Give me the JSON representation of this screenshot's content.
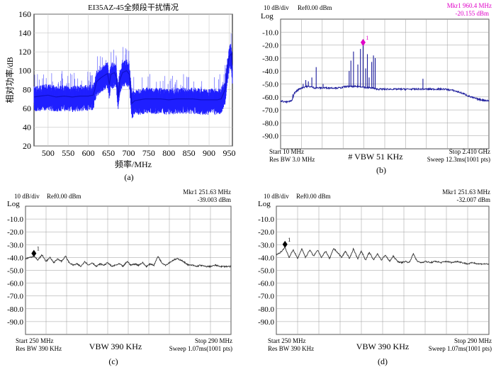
{
  "chart_data": [
    {
      "id": "a",
      "type": "line",
      "title": "EI35AZ-45全频段干扰情况",
      "xlabel": "频率/MHz",
      "ylabel": "相对功率/dB",
      "caption": "(a)",
      "xlim": [
        465,
        958
      ],
      "ylim": [
        20,
        160
      ],
      "xticks": [
        "500",
        "550",
        "600",
        "650",
        "700",
        "750",
        "800",
        "850",
        "900",
        "950"
      ],
      "yticks": [
        "20",
        "40",
        "60",
        "80",
        "100",
        "120",
        "140",
        "160"
      ],
      "grid": true,
      "series": [
        {
          "color": "#1f1fff",
          "points": [
            [
              465,
              72
            ],
            [
              480,
              73
            ],
            [
              500,
              74
            ],
            [
              520,
              72
            ],
            [
              540,
              73
            ],
            [
              560,
              72
            ],
            [
              580,
              73
            ],
            [
              600,
              73
            ],
            [
              612,
              74
            ],
            [
              616,
              80
            ],
            [
              620,
              88
            ],
            [
              630,
              92
            ],
            [
              640,
              95
            ],
            [
              648,
              97
            ],
            [
              652,
              85
            ],
            [
              656,
              96
            ],
            [
              665,
              98
            ],
            [
              670,
              93
            ],
            [
              674,
              72
            ],
            [
              678,
              90
            ],
            [
              685,
              98
            ],
            [
              695,
              100
            ],
            [
              702,
              96
            ],
            [
              705,
              80
            ],
            [
              708,
              65
            ],
            [
              715,
              68
            ],
            [
              740,
              70
            ],
            [
              760,
              70
            ],
            [
              780,
              70
            ],
            [
              800,
              69
            ],
            [
              820,
              70
            ],
            [
              840,
              70
            ],
            [
              860,
              70
            ],
            [
              880,
              69
            ],
            [
              900,
              69
            ],
            [
              920,
              69
            ],
            [
              930,
              70
            ],
            [
              940,
              80
            ],
            [
              945,
              100
            ],
            [
              950,
              115
            ],
            [
              955,
              118
            ],
            [
              958,
              100
            ]
          ]
        }
      ]
    },
    {
      "id": "b",
      "type": "line",
      "caption": "(b)",
      "header_left": "10 dB/div",
      "header_ref": "Ref0.00 dBm",
      "scale_label": "Log",
      "marker_text": "Mkr1 960.4 MHz",
      "marker_value": "-20.155 dBm",
      "bottom_left_1": "Start 10 MHz",
      "bottom_left_2": "Res BW 3.0 MHz",
      "bottom_center": "# VBW 51 KHz",
      "bottom_right_1": "Stop 2.410 GHz",
      "bottom_right_2": "Sweep 12.3ms(1001 pts)",
      "xlim": [
        10,
        2410
      ],
      "ylim": [
        -100,
        0
      ],
      "yticks": [
        "-10.0",
        "-20.0",
        "-30.0",
        "-40.0",
        "-50.0",
        "-60.0",
        "-70.0",
        "-80.0",
        "-90.0"
      ],
      "grid": true,
      "marker": {
        "label": "1",
        "x": 960.4,
        "y": -20.155
      },
      "series": [
        {
          "color": "#1c1c9c",
          "points": [
            [
              10,
              -63
            ],
            [
              80,
              -64
            ],
            [
              140,
              -63
            ],
            [
              170,
              -57
            ],
            [
              200,
              -55
            ],
            [
              250,
              -53
            ],
            [
              300,
              -52
            ],
            [
              350,
              -52
            ],
            [
              400,
              -53
            ],
            [
              480,
              -53
            ],
            [
              560,
              -53
            ],
            [
              640,
              -53
            ],
            [
              700,
              -53
            ],
            [
              760,
              -52
            ],
            [
              820,
              -52
            ],
            [
              880,
              -52
            ],
            [
              940,
              -52
            ],
            [
              1000,
              -53
            ],
            [
              1060,
              -53
            ],
            [
              1120,
              -54
            ],
            [
              1200,
              -54
            ],
            [
              1300,
              -54
            ],
            [
              1400,
              -54
            ],
            [
              1500,
              -54
            ],
            [
              1600,
              -54
            ],
            [
              1700,
              -54
            ],
            [
              1800,
              -54
            ],
            [
              1900,
              -54
            ],
            [
              2000,
              -55
            ],
            [
              2100,
              -57
            ],
            [
              2200,
              -60
            ],
            [
              2300,
              -62
            ],
            [
              2410,
              -63
            ]
          ]
        }
      ],
      "spikes": [
        [
          150,
          -58
        ],
        [
          200,
          -56
        ],
        [
          240,
          -54
        ],
        [
          270,
          -50
        ],
        [
          300,
          -47
        ],
        [
          330,
          -48
        ],
        [
          370,
          -45
        ],
        [
          420,
          -37
        ],
        [
          500,
          -50
        ],
        [
          800,
          -40
        ],
        [
          820,
          -32
        ],
        [
          850,
          -25
        ],
        [
          900,
          -35
        ],
        [
          930,
          -23
        ],
        [
          960,
          -20.155
        ],
        [
          990,
          -38
        ],
        [
          1010,
          -27
        ],
        [
          1030,
          -45
        ],
        [
          1060,
          -33
        ],
        [
          1080,
          -28
        ],
        [
          1100,
          -30
        ],
        [
          1650,
          -46
        ]
      ]
    },
    {
      "id": "c",
      "type": "line",
      "caption": "(c)",
      "header_left": "10 dB/div",
      "header_ref": "Ref0.00 dBm",
      "scale_label": "Log",
      "marker_text": "Mkr1 251.63 MHz",
      "marker_value": "-39.003 dBm",
      "bottom_left_1": "Start 250 MHz",
      "bottom_left_2": "Res BW 390 KHz",
      "bottom_center": "VBW 390 KHz",
      "bottom_right_1": "Stop 290 MHz",
      "bottom_right_2": "Sweep 1.07ms(1001 pts)",
      "xlim": [
        250,
        290
      ],
      "ylim": [
        -100,
        0
      ],
      "yticks": [
        "-10.0",
        "-20.0",
        "-30.0",
        "-40.0",
        "-50.0",
        "-60.0",
        "-70.0",
        "-80.0",
        "-90.0"
      ],
      "grid": true,
      "marker": {
        "label": "1",
        "x": 251.63,
        "y": -39.003
      },
      "series": [
        {
          "color": "#333333",
          "points": [
            [
              250,
              -41
            ],
            [
              250.8,
              -40
            ],
            [
              251.63,
              -39
            ],
            [
              252.4,
              -42
            ],
            [
              253.2,
              -38
            ],
            [
              254,
              -43
            ],
            [
              254.8,
              -40
            ],
            [
              255.5,
              -44
            ],
            [
              256.3,
              -41
            ],
            [
              257,
              -43
            ],
            [
              257.8,
              -39
            ],
            [
              258.5,
              -44
            ],
            [
              259.3,
              -46
            ],
            [
              260,
              -45
            ],
            [
              260.8,
              -47
            ],
            [
              261.5,
              -43
            ],
            [
              262.3,
              -46
            ],
            [
              263,
              -44
            ],
            [
              263.8,
              -47
            ],
            [
              264.5,
              -45
            ],
            [
              265.3,
              -46
            ],
            [
              266,
              -44
            ],
            [
              266.8,
              -47
            ],
            [
              267.5,
              -46
            ],
            [
              268.3,
              -45
            ],
            [
              269,
              -47
            ],
            [
              269.8,
              -43
            ],
            [
              270.5,
              -46
            ],
            [
              271.3,
              -45
            ],
            [
              272,
              -46
            ],
            [
              272.8,
              -44
            ],
            [
              273.5,
              -47
            ],
            [
              274.3,
              -45
            ],
            [
              275,
              -46
            ],
            [
              275.8,
              -39
            ],
            [
              276.5,
              -44
            ],
            [
              277.3,
              -46
            ],
            [
              278,
              -44
            ],
            [
              278.8,
              -42
            ],
            [
              279.5,
              -41
            ],
            [
              280.3,
              -42
            ],
            [
              281,
              -44
            ],
            [
              281.8,
              -46
            ],
            [
              282.5,
              -46
            ],
            [
              283.3,
              -47
            ],
            [
              284,
              -46
            ],
            [
              285,
              -47
            ],
            [
              286,
              -47
            ],
            [
              287,
              -46
            ],
            [
              288,
              -47
            ],
            [
              289,
              -47
            ],
            [
              290,
              -47
            ]
          ]
        }
      ]
    },
    {
      "id": "d",
      "type": "line",
      "caption": "(d)",
      "header_left": "10 dB/div",
      "header_ref": "Ref0.00 dBm",
      "scale_label": "Log",
      "marker_text": "Mkr1 251.63 MHz",
      "marker_value": "-32.007 dBm",
      "bottom_left_1": "Start 250 MHz",
      "bottom_left_2": "Res BW 390 KHz",
      "bottom_center": "VBW 390 KHz",
      "bottom_right_1": "Stop 290 MHz",
      "bottom_right_2": "Sweep 1.07ms(1001 pts)",
      "xlim": [
        250,
        290
      ],
      "ylim": [
        -100,
        0
      ],
      "yticks": [
        "-10.0",
        "-20.0",
        "-30.0",
        "-40.0",
        "-50.0",
        "-60.0",
        "-70.0",
        "-80.0",
        "-90.0"
      ],
      "grid": true,
      "marker": {
        "label": "1",
        "x": 251.63,
        "y": -32.007
      },
      "series": [
        {
          "color": "#333333",
          "points": [
            [
              250,
              -38
            ],
            [
              250.8,
              -36
            ],
            [
              251.63,
              -32
            ],
            [
              252.4,
              -40
            ],
            [
              253.2,
              -34
            ],
            [
              254,
              -41
            ],
            [
              254.8,
              -33
            ],
            [
              255.5,
              -40
            ],
            [
              256.3,
              -34
            ],
            [
              257,
              -39
            ],
            [
              257.8,
              -34
            ],
            [
              258.5,
              -40
            ],
            [
              259.3,
              -35
            ],
            [
              260,
              -41
            ],
            [
              260.8,
              -33
            ],
            [
              261.5,
              -36
            ],
            [
              262.3,
              -40
            ],
            [
              263,
              -35
            ],
            [
              263.8,
              -41
            ],
            [
              264.5,
              -33
            ],
            [
              265.3,
              -41
            ],
            [
              266,
              -35
            ],
            [
              266.8,
              -42
            ],
            [
              267.5,
              -36
            ],
            [
              268.3,
              -42
            ],
            [
              269,
              -37
            ],
            [
              269.8,
              -42
            ],
            [
              270.5,
              -38
            ],
            [
              271.3,
              -43
            ],
            [
              272,
              -39
            ],
            [
              272.8,
              -43
            ],
            [
              273.5,
              -44
            ],
            [
              274.3,
              -43
            ],
            [
              275,
              -44
            ],
            [
              275.8,
              -37
            ],
            [
              276.5,
              -43
            ],
            [
              277.3,
              -44
            ],
            [
              278,
              -43
            ],
            [
              279,
              -44
            ],
            [
              280,
              -43
            ],
            [
              281,
              -44
            ],
            [
              282,
              -43
            ],
            [
              283,
              -44
            ],
            [
              284,
              -43
            ],
            [
              285,
              -44
            ],
            [
              286,
              -45
            ],
            [
              287,
              -44
            ],
            [
              288,
              -45
            ],
            [
              289,
              -45
            ],
            [
              290,
              -45
            ]
          ]
        }
      ]
    }
  ]
}
